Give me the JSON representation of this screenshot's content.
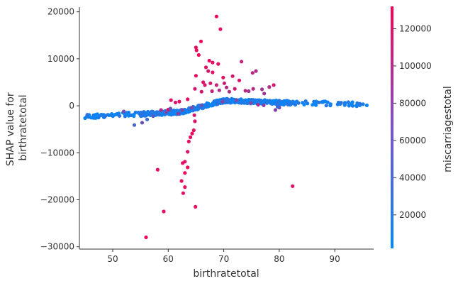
{
  "chart_data": {
    "type": "scatter",
    "title": "",
    "xlabel": "birthratetotal",
    "ylabel_lines": [
      "SHAP value for",
      "birthratetotal"
    ],
    "xlim": [
      44,
      97
    ],
    "ylim": [
      -30500,
      21000
    ],
    "xticks": [
      50,
      60,
      70,
      80,
      90
    ],
    "yticks": [
      -30000,
      -20000,
      -10000,
      0,
      10000,
      20000
    ],
    "ytick_labels": [
      "−30000",
      "−20000",
      "−10000",
      "0",
      "10000",
      "20000"
    ],
    "grid": false,
    "colorbar": {
      "label": "miscarriagestotal",
      "range": [
        2000,
        132000
      ],
      "ticks": [
        20000,
        40000,
        60000,
        80000,
        100000,
        120000
      ],
      "tick_labels": [
        "20000",
        "40000",
        "60000",
        "80000",
        "100000",
        "120000"
      ],
      "colors": [
        "#008afb",
        "#ff0052"
      ]
    },
    "points": [
      [
        65.1,
        11800,
        125000
      ],
      [
        65.5,
        10800,
        125000
      ],
      [
        65.9,
        13700,
        125000
      ],
      [
        65.0,
        12400,
        118000
      ],
      [
        66.8,
        8200,
        120000
      ],
      [
        67.4,
        9600,
        125000
      ],
      [
        68.0,
        9200,
        120000
      ],
      [
        68.7,
        19000,
        125000
      ],
      [
        69.4,
        16300,
        120000
      ],
      [
        69.0,
        8900,
        118000
      ],
      [
        67.2,
        7400,
        110000
      ],
      [
        68.0,
        7100,
        115000
      ],
      [
        69.9,
        6000,
        118000
      ],
      [
        71.6,
        6300,
        110000
      ],
      [
        72.8,
        5400,
        115000
      ],
      [
        73.2,
        9400,
        100000
      ],
      [
        75.2,
        7000,
        95000
      ],
      [
        75.8,
        7400,
        90000
      ],
      [
        78.2,
        4000,
        90000
      ],
      [
        79.0,
        4400,
        110000
      ],
      [
        71.0,
        3000,
        90000
      ],
      [
        72.0,
        3600,
        110000
      ],
      [
        73.9,
        3200,
        95000
      ],
      [
        76.9,
        3500,
        85000
      ],
      [
        66.3,
        5000,
        115000
      ],
      [
        66.6,
        4400,
        110000
      ],
      [
        67.6,
        4800,
        112000
      ],
      [
        68.7,
        4400,
        100000
      ],
      [
        70.1,
        4800,
        105000
      ],
      [
        70.5,
        3900,
        95000
      ],
      [
        69.2,
        3300,
        90000
      ],
      [
        67.9,
        3100,
        98000
      ],
      [
        66.0,
        3000,
        110000
      ],
      [
        65.0,
        6400,
        120000
      ],
      [
        64.8,
        3600,
        112000
      ],
      [
        75.3,
        3600,
        95000
      ],
      [
        74.5,
        3100,
        85000
      ],
      [
        77.3,
        2600,
        80000
      ],
      [
        63.5,
        1400,
        118000
      ],
      [
        62.0,
        900,
        115000
      ],
      [
        60.5,
        1200,
        120000
      ],
      [
        60.0,
        -800,
        118000
      ],
      [
        61.3,
        700,
        110000
      ],
      [
        64.7,
        -2000,
        110000
      ],
      [
        64.8,
        -3300,
        115000
      ],
      [
        64.6,
        -5200,
        120000
      ],
      [
        64.3,
        -5900,
        125000
      ],
      [
        64.0,
        -6700,
        120000
      ],
      [
        63.7,
        -7600,
        118000
      ],
      [
        63.5,
        -9800,
        112000
      ],
      [
        63.0,
        -11900,
        118000
      ],
      [
        62.6,
        -12200,
        118000
      ],
      [
        63.5,
        -13100,
        125000
      ],
      [
        63.0,
        -14300,
        125000
      ],
      [
        62.4,
        -16000,
        120000
      ],
      [
        63.0,
        -17300,
        120000
      ],
      [
        62.7,
        -18600,
        118000
      ],
      [
        58.1,
        -13600,
        120000
      ],
      [
        59.2,
        -22500,
        118000
      ],
      [
        64.9,
        -21500,
        120000
      ],
      [
        56.0,
        -28000,
        125000
      ],
      [
        82.4,
        -17100,
        120000
      ],
      [
        53.9,
        -4100,
        40000
      ],
      [
        56.2,
        -2900,
        30000
      ],
      [
        55.3,
        -3600,
        55000
      ],
      [
        57.3,
        -2200,
        45000
      ],
      [
        59.6,
        -1400,
        60000
      ],
      [
        60.4,
        -600,
        50000
      ],
      [
        62.5,
        -900,
        70000
      ],
      [
        64.2,
        -400,
        65000
      ],
      [
        66.0,
        100,
        55000
      ],
      [
        69.8,
        900,
        70000
      ],
      [
        72.3,
        1200,
        60000
      ],
      [
        74.9,
        600,
        65000
      ],
      [
        79.3,
        -900,
        70000
      ],
      [
        80.0,
        -400,
        60000
      ],
      [
        77.2,
        100,
        75000
      ],
      [
        52.0,
        -1200,
        60000
      ],
      [
        58.7,
        -900,
        90000
      ],
      [
        61.8,
        -1700,
        80000
      ],
      [
        76.2,
        200,
        90000
      ],
      [
        79.7,
        -200,
        30000
      ]
    ]
  }
}
